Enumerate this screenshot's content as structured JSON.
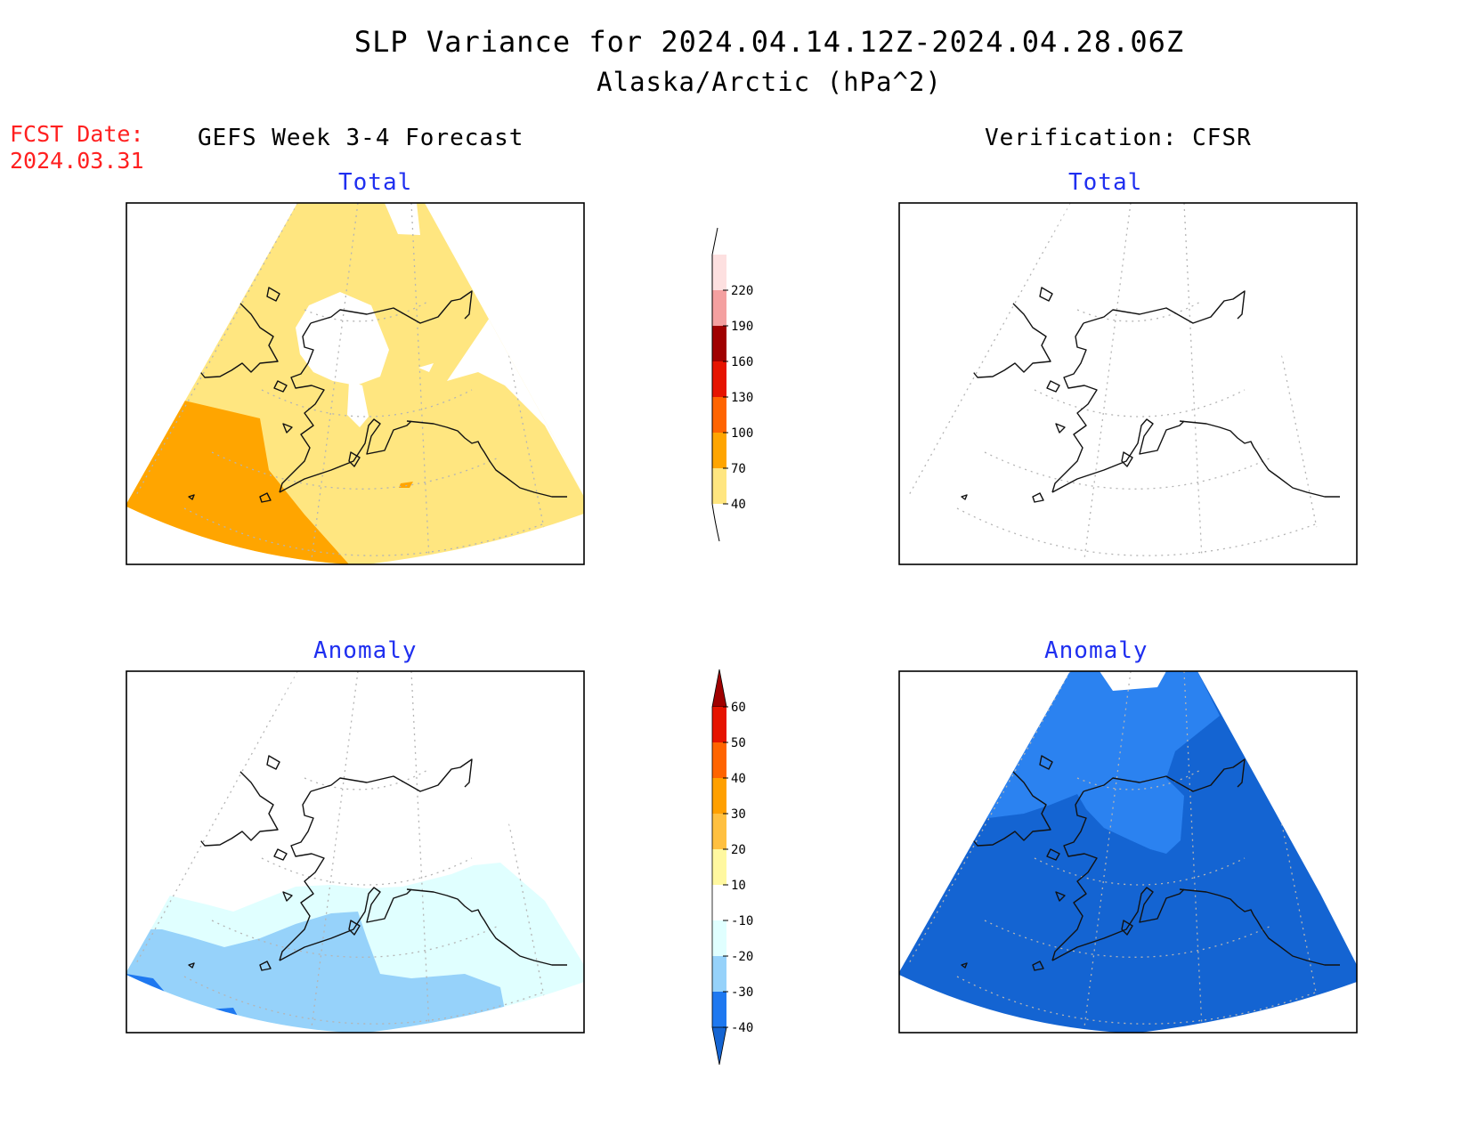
{
  "header": {
    "title": "SLP Variance for 2024.04.14.12Z-2024.04.28.06Z",
    "subtitle": "Alaska/Arctic (hPa^2)",
    "fcst_date_label": "FCST Date:",
    "fcst_date_value": "2024.03.31"
  },
  "columns": {
    "left": "GEFS Week 3-4 Forecast",
    "right": "Verification: CFSR"
  },
  "panels": {
    "forecast_total": "Total",
    "verification_total": "Total",
    "forecast_anomaly": "Anomaly",
    "verification_anomaly": "Anomaly"
  },
  "colorbars": {
    "total": {
      "levels": [
        "40",
        "70",
        "100",
        "130",
        "160",
        "190",
        "220"
      ],
      "colors": [
        "#ffe680",
        "#ffa500",
        "#ff6400",
        "#e61400",
        "#a00000",
        "#f4a0a0",
        "#fde0e0"
      ]
    },
    "anomaly": {
      "levels": [
        "60",
        "50",
        "40",
        "30",
        "20",
        "10",
        "-10",
        "-20",
        "-30",
        "-40"
      ],
      "colors": [
        "#a00000",
        "#e61400",
        "#ff6400",
        "#ffa000",
        "#ffc040",
        "#fff8a0",
        "#ffffff",
        "#e0ffff",
        "#96d2fa",
        "#1e78f0",
        "#1464d2"
      ]
    }
  },
  "regions": {
    "yellow": "#ffe680",
    "orange": "#ffa500",
    "light_cyan": "#e0ffff",
    "light_blue": "#96d2fa",
    "mid_blue": "#2b82f0",
    "deep_blue": "#1464d2",
    "blue": "#1e6edc"
  }
}
